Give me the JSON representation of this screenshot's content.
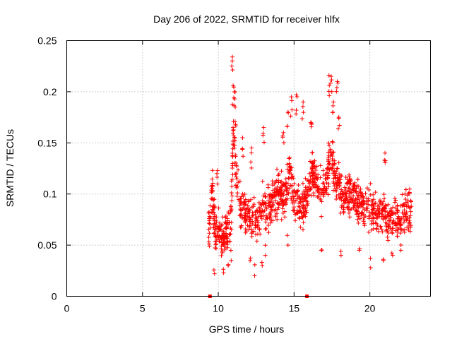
{
  "chart_data": {
    "type": "scatter",
    "title": "Day 206 of 2022, SRMTID for receiver hlfx",
    "xlabel": "GPS time / hours",
    "ylabel": "SRMTID / TECUs",
    "xlim": [
      0,
      24
    ],
    "ylim": [
      0,
      0.25
    ],
    "xticks": [
      0,
      5,
      10,
      15,
      20
    ],
    "yticks": [
      0,
      0.05,
      0.1,
      0.15,
      0.2,
      0.25
    ],
    "ytick_labels": [
      "0",
      "0.05",
      "0.1",
      "0.15",
      "0.2",
      "0.25"
    ],
    "grid": true,
    "series_color": "#ff0000",
    "zero_markers": [
      9.45,
      15.85
    ],
    "anchors": [
      [
        9.4,
        0.065
      ],
      [
        9.6,
        0.11
      ],
      [
        9.8,
        0.06
      ],
      [
        10.0,
        0.07
      ],
      [
        10.2,
        0.055
      ],
      [
        10.4,
        0.065
      ],
      [
        10.6,
        0.06
      ],
      [
        10.8,
        0.07
      ],
      [
        10.9,
        0.1
      ],
      [
        11.0,
        0.17
      ],
      [
        11.2,
        0.11
      ],
      [
        11.4,
        0.09
      ],
      [
        11.6,
        0.085
      ],
      [
        11.8,
        0.075
      ],
      [
        12.0,
        0.08
      ],
      [
        12.3,
        0.08
      ],
      [
        12.6,
        0.07
      ],
      [
        12.9,
        0.09
      ],
      [
        13.2,
        0.085
      ],
      [
        13.5,
        0.09
      ],
      [
        13.8,
        0.1
      ],
      [
        14.1,
        0.1
      ],
      [
        14.4,
        0.095
      ],
      [
        14.7,
        0.12
      ],
      [
        15.0,
        0.1
      ],
      [
        15.3,
        0.09
      ],
      [
        15.6,
        0.085
      ],
      [
        15.9,
        0.1
      ],
      [
        16.2,
        0.125
      ],
      [
        16.5,
        0.11
      ],
      [
        16.8,
        0.1
      ],
      [
        17.1,
        0.11
      ],
      [
        17.4,
        0.14
      ],
      [
        17.7,
        0.12
      ],
      [
        18.0,
        0.1
      ],
      [
        18.3,
        0.095
      ],
      [
        18.6,
        0.1
      ],
      [
        18.9,
        0.095
      ],
      [
        19.2,
        0.09
      ],
      [
        19.5,
        0.085
      ],
      [
        19.8,
        0.09
      ],
      [
        20.1,
        0.085
      ],
      [
        20.4,
        0.08
      ],
      [
        20.7,
        0.085
      ],
      [
        21.0,
        0.08
      ],
      [
        21.3,
        0.075
      ],
      [
        21.6,
        0.08
      ],
      [
        21.9,
        0.075
      ],
      [
        22.2,
        0.08
      ],
      [
        22.5,
        0.085
      ],
      [
        22.7,
        0.085
      ]
    ],
    "peaks": [
      [
        10.93,
        0.234
      ],
      [
        10.98,
        0.206
      ],
      [
        11.07,
        0.2
      ],
      [
        11.12,
        0.185
      ],
      [
        14.82,
        0.195
      ],
      [
        14.6,
        0.18
      ],
      [
        15.15,
        0.197
      ],
      [
        15.6,
        0.19
      ],
      [
        17.3,
        0.216
      ],
      [
        17.45,
        0.215
      ],
      [
        17.85,
        0.21
      ],
      [
        17.6,
        0.19
      ],
      [
        13.0,
        0.165
      ],
      [
        17.95,
        0.175
      ],
      [
        11.6,
        0.155
      ],
      [
        16.1,
        0.17
      ],
      [
        21.0,
        0.14
      ],
      [
        9.95,
        0.123
      ],
      [
        14.3,
        0.16
      ],
      [
        12.2,
        0.145
      ]
    ],
    "lows": [
      [
        9.75,
        0.022
      ],
      [
        10.35,
        0.023
      ],
      [
        10.65,
        0.03
      ],
      [
        10.85,
        0.035
      ],
      [
        12.4,
        0.02
      ],
      [
        12.1,
        0.035
      ],
      [
        12.9,
        0.03
      ],
      [
        13.1,
        0.04
      ],
      [
        20.05,
        0.028
      ],
      [
        20.9,
        0.035
      ],
      [
        21.5,
        0.04
      ],
      [
        22.05,
        0.045
      ],
      [
        19.3,
        0.045
      ],
      [
        18.1,
        0.04
      ],
      [
        16.8,
        0.045
      ],
      [
        14.6,
        0.05
      ]
    ]
  }
}
